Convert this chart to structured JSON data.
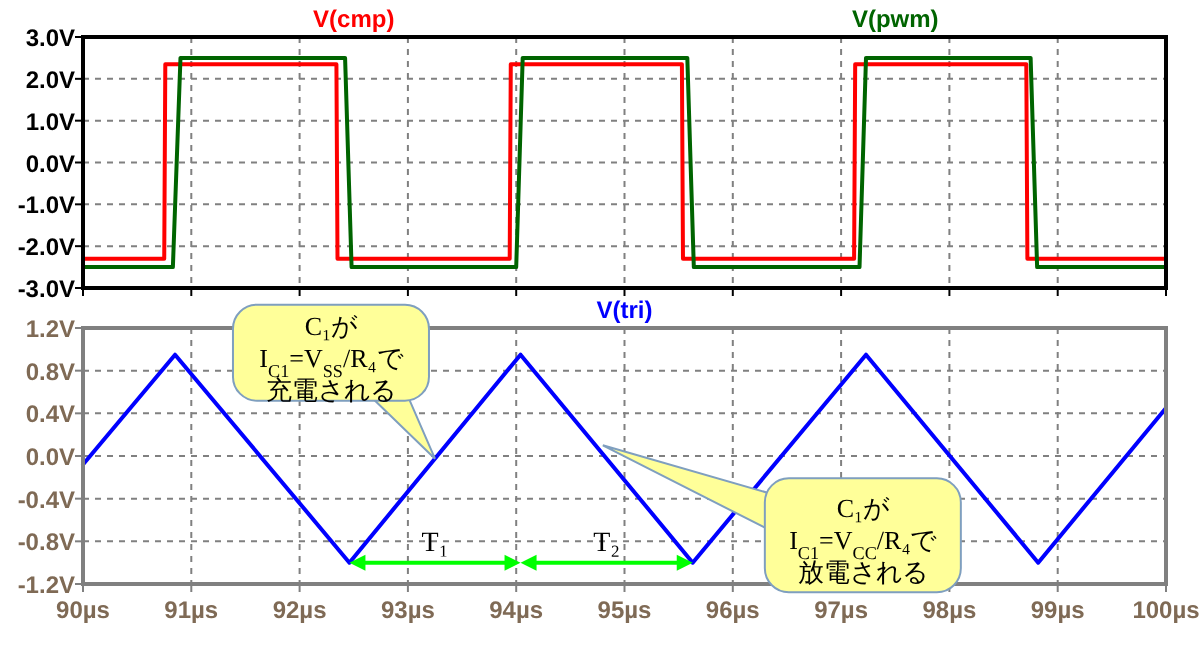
{
  "chart_data": [
    {
      "type": "line",
      "xlim": [
        90,
        100
      ],
      "xticks": [
        {
          "value": 90,
          "label": null
        },
        {
          "value": 91,
          "label": null
        },
        {
          "value": 92,
          "label": null
        },
        {
          "value": 93,
          "label": null
        },
        {
          "value": 94,
          "label": null
        },
        {
          "value": 95,
          "label": null
        },
        {
          "value": 96,
          "label": null
        },
        {
          "value": 97,
          "label": null
        },
        {
          "value": 98,
          "label": null
        },
        {
          "value": 99,
          "label": null
        },
        {
          "value": 100,
          "label": null
        }
      ],
      "ylim": [
        -3,
        3
      ],
      "yticks": [
        {
          "value": 3,
          "label": "3.0V"
        },
        {
          "value": 2,
          "label": "2.0V"
        },
        {
          "value": 1,
          "label": "1.0V"
        },
        {
          "value": 0,
          "label": "0.0V"
        },
        {
          "value": -1,
          "label": "-1.0V"
        },
        {
          "value": -2,
          "label": "-2.0V"
        },
        {
          "value": -3,
          "label": "-3.0V"
        }
      ],
      "tick_labels": "y",
      "grid": true,
      "legend": "top",
      "series": [
        {
          "name": "V(cmp)",
          "color": "#ff0000",
          "x": [
            90,
            90.75,
            90.76,
            92.34,
            92.35,
            93.94,
            93.95,
            95.53,
            95.54,
            97.12,
            97.13,
            98.71,
            98.72,
            100
          ],
          "values": [
            -2.3,
            -2.3,
            2.35,
            2.35,
            -2.3,
            -2.3,
            2.35,
            2.35,
            -2.3,
            -2.3,
            2.35,
            2.35,
            -2.3,
            -2.3
          ]
        },
        {
          "name": "V(pwm)",
          "color": "#006400",
          "x": [
            90,
            90.83,
            90.9,
            92.42,
            92.48,
            94.0,
            94.06,
            95.58,
            95.64,
            97.17,
            97.23,
            98.75,
            98.81,
            100
          ],
          "values": [
            -2.5,
            -2.5,
            2.5,
            2.5,
            -2.5,
            -2.5,
            2.5,
            2.5,
            -2.5,
            -2.5,
            2.5,
            2.5,
            -2.5,
            -2.5
          ]
        }
      ]
    },
    {
      "type": "line",
      "xlim": [
        90,
        100
      ],
      "xticks": [
        {
          "value": 90,
          "label": "90µs"
        },
        {
          "value": 91,
          "label": "91µs"
        },
        {
          "value": 92,
          "label": "92µs"
        },
        {
          "value": 93,
          "label": "93µs"
        },
        {
          "value": 94,
          "label": "94µs"
        },
        {
          "value": 95,
          "label": "95µs"
        },
        {
          "value": 96,
          "label": "96µs"
        },
        {
          "value": 97,
          "label": "97µs"
        },
        {
          "value": 98,
          "label": "98µs"
        },
        {
          "value": 99,
          "label": "99µs"
        },
        {
          "value": 100,
          "label": "100µs"
        }
      ],
      "ylim": [
        -1.2,
        1.2
      ],
      "yticks": [
        {
          "value": 1.2,
          "label": "1.2V"
        },
        {
          "value": 0.8,
          "label": "0.8V"
        },
        {
          "value": 0.4,
          "label": "0.4V"
        },
        {
          "value": 0,
          "label": "0.0V"
        },
        {
          "value": -0.4,
          "label": "-0.4V"
        },
        {
          "value": -0.8,
          "label": "-0.8V"
        },
        {
          "value": -1.2,
          "label": "-1.2V"
        }
      ],
      "grid": true,
      "legend": "top",
      "series": [
        {
          "name": "V(tri)",
          "color": "#0000ff",
          "x": [
            90,
            90.85,
            92.46,
            94.04,
            95.63,
            97.23,
            98.82,
            100
          ],
          "values": [
            -0.08,
            0.95,
            -1.0,
            0.95,
            -1.0,
            0.95,
            -1.0,
            0.45
          ]
        }
      ],
      "annotations": [
        "C₁が",
        "I$_{C1}$=V$_{SS}$/R₄で",
        "充電される",
        {
          "text": "C₁が",
          "x": 94.8,
          "y": 0.1
        },
        "I$_{C1}$=V$_{CC}$/R₄で",
        "放電される",
        "T₁",
        "T₂"
      ]
    }
  ]
}
